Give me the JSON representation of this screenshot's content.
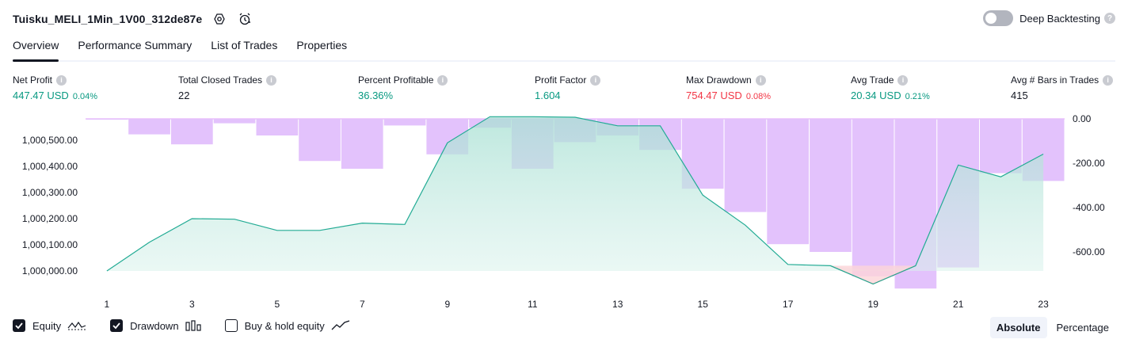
{
  "header": {
    "title": "Tuisku_MELI_1Min_1V00_312de87e",
    "deep_backtesting_label": "Deep Backtesting",
    "icons": [
      "settings-icon",
      "alert-clock-icon",
      "help-icon"
    ]
  },
  "tabs": [
    {
      "label": "Overview",
      "active": true
    },
    {
      "label": "Performance Summary",
      "active": false
    },
    {
      "label": "List of Trades",
      "active": false
    },
    {
      "label": "Properties",
      "active": false
    }
  ],
  "metrics": {
    "net_profit": {
      "label": "Net Profit",
      "value": "447.47 USD",
      "pct": "0.04%"
    },
    "total_closed_trades": {
      "label": "Total Closed Trades",
      "value": "22"
    },
    "percent_profitable": {
      "label": "Percent Profitable",
      "value": "36.36%"
    },
    "profit_factor": {
      "label": "Profit Factor",
      "value": "1.604"
    },
    "max_drawdown": {
      "label": "Max Drawdown",
      "value": "754.47 USD",
      "pct": "0.08%"
    },
    "avg_trade": {
      "label": "Avg Trade",
      "value": "20.34 USD",
      "pct": "0.21%"
    },
    "avg_bars": {
      "label": "Avg # Bars in Trades",
      "value": "415"
    }
  },
  "colors": {
    "equity_line": "#22ab94",
    "equity_fill": "#d3f0ea",
    "equity_below_line": "#f23645",
    "drawdown_bar": "#e1bffc",
    "positive": "#089981",
    "negative": "#f23645"
  },
  "chart_data": {
    "type": "area",
    "x": [
      1,
      2,
      3,
      4,
      5,
      6,
      7,
      8,
      9,
      10,
      11,
      12,
      13,
      14,
      15,
      16,
      17,
      18,
      19,
      20,
      21,
      22,
      23
    ],
    "x_tick_labels": [
      "1",
      "3",
      "5",
      "7",
      "9",
      "11",
      "13",
      "15",
      "17",
      "19",
      "21",
      "23"
    ],
    "left_axis": {
      "ticks": [
        "1,000,000.00",
        "1,000,100.00",
        "1,000,200.00",
        "1,000,300.00",
        "1,000,400.00",
        "1,000,500.00"
      ],
      "ylim": [
        999975,
        1000610
      ]
    },
    "right_axis": {
      "ticks": [
        "0.00",
        "-200.00",
        "-400.00",
        "-600.00"
      ],
      "ylim": [
        -780,
        0
      ]
    },
    "series": [
      {
        "name": "Equity",
        "axis": "left",
        "values": [
          1000000,
          1000110,
          1000200,
          1000198,
          1000155,
          1000155,
          1000183,
          1000178,
          1000490,
          1000590,
          1000590,
          1000588,
          1000555,
          1000555,
          1000290,
          1000175,
          1000025,
          1000020,
          999950,
          1000020,
          1000405,
          1000360,
          1000447
        ]
      },
      {
        "name": "Drawdown",
        "axis": "right",
        "type": "bar",
        "values": [
          -2,
          -70,
          -115,
          -20,
          -75,
          -190,
          -225,
          -30,
          -160,
          -40,
          -225,
          -105,
          -75,
          -140,
          -315,
          -420,
          -565,
          -600,
          -710,
          -765,
          -670,
          -245,
          -280
        ]
      }
    ]
  },
  "legend": [
    {
      "label": "Equity",
      "checked": true,
      "icon": "equity-line-icon"
    },
    {
      "label": "Drawdown",
      "checked": true,
      "icon": "drawdown-bars-icon"
    },
    {
      "label": "Buy & hold equity",
      "checked": false,
      "icon": "buy-hold-line-icon"
    }
  ],
  "mode": {
    "options": [
      "Absolute",
      "Percentage"
    ],
    "selected": "Absolute"
  }
}
